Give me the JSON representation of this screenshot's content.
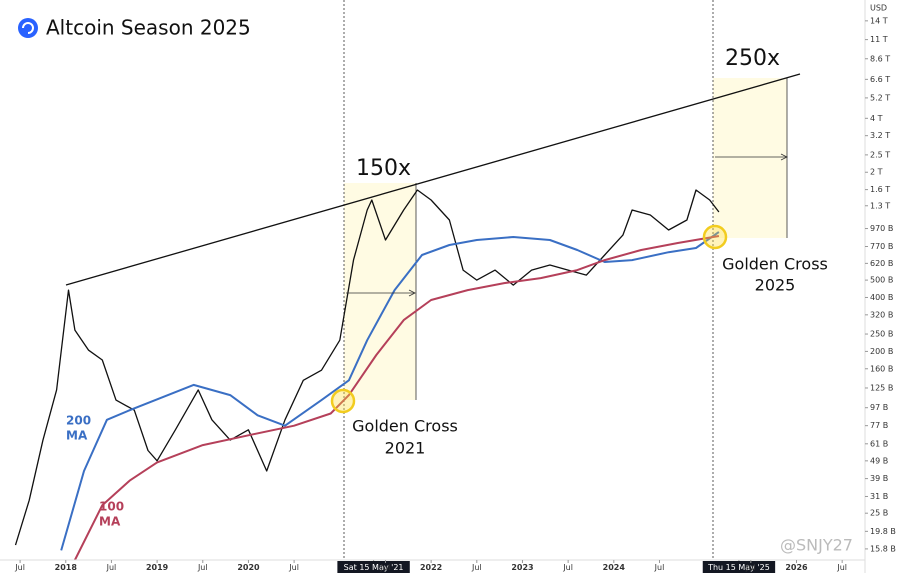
{
  "chart_data": {
    "type": "line",
    "title": "Altcoin Season 2025",
    "currency": "USD",
    "watermark": "@SNJY27",
    "log_y": true,
    "xlim": [
      2017.28,
      2026.75
    ],
    "xticks": [
      {
        "value": 2017.5,
        "label": "Jul"
      },
      2018,
      {
        "value": 2018.5,
        "label": "Jul"
      },
      2019,
      {
        "value": 2019.5,
        "label": "Jul"
      },
      2020,
      {
        "value": 2020.5,
        "label": "Jul"
      },
      {
        "value": 2021.37,
        "label": "Sat 15 May '21"
      },
      {
        "value": 2021.5,
        "label": "Jul"
      },
      2022,
      {
        "value": 2022.5,
        "label": "Jul"
      },
      2023,
      {
        "value": 2023.5,
        "label": "Jul"
      },
      2024,
      {
        "value": 2024.5,
        "label": "Jul"
      },
      {
        "value": 2025.37,
        "label": "Thu 15 May '25"
      },
      {
        "value": 2025.5,
        "label": "Jul"
      },
      2026,
      {
        "value": 2026.5,
        "label": "Jul"
      }
    ],
    "ylim": [
      13.7,
      18300
    ],
    "yticks": [
      {
        "value": 14000,
        "label": "14 T"
      },
      {
        "value": 11000,
        "label": "11 T"
      },
      {
        "value": 8600,
        "label": "8.6 T"
      },
      {
        "value": 6600,
        "label": "6.6 T"
      },
      {
        "value": 5200,
        "label": "5.2 T"
      },
      {
        "value": 4000,
        "label": "4 T"
      },
      {
        "value": 3200,
        "label": "3.2 T"
      },
      {
        "value": 2500,
        "label": "2.5 T"
      },
      {
        "value": 2000,
        "label": "2 T"
      },
      {
        "value": 1600,
        "label": "1.6 T"
      },
      {
        "value": 1300,
        "label": "1.3 T"
      },
      {
        "value": 970,
        "label": "970 B"
      },
      {
        "value": 770,
        "label": "770 B"
      },
      {
        "value": 620,
        "label": "620 B"
      },
      {
        "value": 500,
        "label": "500 B"
      },
      {
        "value": 400,
        "label": "400 B"
      },
      {
        "value": 320,
        "label": "320 B"
      },
      {
        "value": 250,
        "label": "250 B"
      },
      {
        "value": 200,
        "label": "200 B"
      },
      {
        "value": 160,
        "label": "160 B"
      },
      {
        "value": 125,
        "label": "125 B"
      },
      {
        "value": 97,
        "label": "97 B"
      },
      {
        "value": 77,
        "label": "77 B"
      },
      {
        "value": 61,
        "label": "61 B"
      },
      {
        "value": 49,
        "label": "49 B"
      },
      {
        "value": 39,
        "label": "39 B"
      },
      {
        "value": 31,
        "label": "31 B"
      },
      {
        "value": 25,
        "label": "25 B"
      },
      {
        "value": 19.8,
        "label": "19.8 B"
      },
      {
        "value": 15.8,
        "label": "15.8 B"
      }
    ],
    "series": [
      {
        "color": "#111111",
        "x": [
          2017.45,
          2017.6,
          2017.75,
          2017.9,
          2018.03,
          2018.1,
          2018.25,
          2018.4,
          2018.55,
          2018.75,
          2018.9,
          2019.0,
          2019.2,
          2019.45,
          2019.6,
          2019.8,
          2020.0,
          2020.2,
          2020.4,
          2020.6,
          2020.8,
          2021.0,
          2021.15,
          2021.3,
          2021.35,
          2021.5,
          2021.7,
          2021.85,
          2022.0,
          2022.2,
          2022.35,
          2022.5,
          2022.7,
          2022.9,
          2023.1,
          2023.3,
          2023.5,
          2023.7,
          2023.9,
          2024.1,
          2024.2,
          2024.4,
          2024.6,
          2024.8,
          2024.9,
          2025.05,
          2025.15
        ],
        "values": [
          16.6,
          29.5,
          63.8,
          122,
          440,
          263,
          203,
          179,
          107,
          94,
          56,
          49,
          73,
          122,
          83,
          64,
          73,
          43,
          83,
          138,
          157,
          231,
          647,
          1231,
          1400,
          837,
          1231,
          1592,
          1400,
          1082,
          569,
          500,
          569,
          469,
          569,
          607,
          569,
          533,
          690,
          892,
          1231,
          1154,
          952,
          1082,
          1592,
          1400,
          1200
        ]
      },
      {
        "color": "#3a6fc4",
        "x": [
          2017.95,
          2018.2,
          2018.45,
          2018.7,
          2019.4,
          2019.8,
          2020.1,
          2020.4,
          2020.8,
          2021.1,
          2021.3,
          2021.6,
          2021.9,
          2022.2,
          2022.5,
          2022.9,
          2023.3,
          2023.6,
          2023.9,
          2024.2,
          2024.6,
          2024.9,
          2025.15
        ],
        "values": [
          15.5,
          43,
          83,
          94,
          130,
          114,
          88,
          77,
          107,
          138,
          231,
          440,
          690,
          785,
          837,
          870,
          837,
          736,
          631,
          647,
          716,
          755,
          928
        ]
      },
      {
        "color": "#b5405a",
        "x": [
          2018.1,
          2018.4,
          2018.7,
          2019.0,
          2019.5,
          2020.0,
          2020.5,
          2020.9,
          2021.1,
          2021.4,
          2021.7,
          2022.0,
          2022.4,
          2022.8,
          2023.2,
          2023.6,
          2023.9,
          2024.3,
          2024.7,
          2025.15
        ],
        "values": [
          13.7,
          27.7,
          38,
          48,
          60,
          68,
          77,
          90,
          114,
          191,
          299,
          387,
          440,
          481,
          513,
          569,
          647,
          736,
          806,
          881
        ]
      }
    ],
    "annotations": {
      "rise_2021": "150x",
      "rise_2025": "250x",
      "cross_2021": [
        "Golden Cross",
        "2021"
      ],
      "cross_2025": [
        "Golden Cross",
        "2025"
      ],
      "ma200": [
        "200",
        "MA"
      ],
      "ma100": [
        "100",
        "MA"
      ]
    }
  }
}
